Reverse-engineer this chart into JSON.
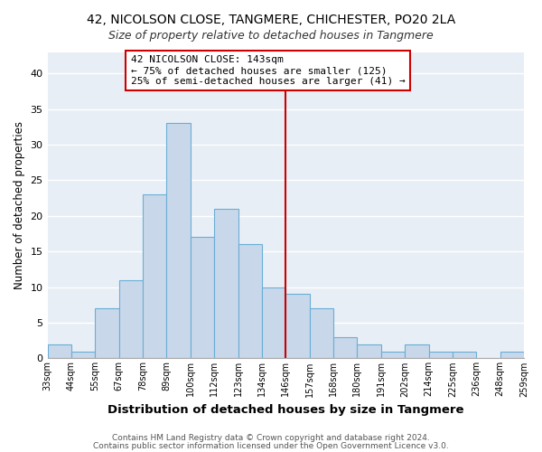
{
  "title1": "42, NICOLSON CLOSE, TANGMERE, CHICHESTER, PO20 2LA",
  "title2": "Size of property relative to detached houses in Tangmere",
  "xlabel": "Distribution of detached houses by size in Tangmere",
  "ylabel": "Number of detached properties",
  "footer1": "Contains HM Land Registry data © Crown copyright and database right 2024.",
  "footer2": "Contains public sector information licensed under the Open Government Licence v3.0.",
  "bin_labels": [
    "33sqm",
    "44sqm",
    "55sqm",
    "67sqm",
    "78sqm",
    "89sqm",
    "100sqm",
    "112sqm",
    "123sqm",
    "134sqm",
    "146sqm",
    "157sqm",
    "168sqm",
    "180sqm",
    "191sqm",
    "202sqm",
    "214sqm",
    "225sqm",
    "236sqm",
    "248sqm",
    "259sqm"
  ],
  "bar_heights": [
    2,
    1,
    7,
    11,
    23,
    33,
    17,
    21,
    16,
    10,
    9,
    7,
    3,
    2,
    1,
    2,
    1,
    1,
    0,
    1
  ],
  "bar_color": "#c8d8ea",
  "bar_edge_color": "#6aaed6",
  "vline_label": "146sqm",
  "vline_color": "#cc0000",
  "annotation_title": "42 NICOLSON CLOSE: 143sqm",
  "annotation_line1": "← 75% of detached houses are smaller (125)",
  "annotation_line2": "25% of semi-detached houses are larger (41) →",
  "annotation_box_edge": "#cc0000",
  "plot_bg_color": "#e8eef5",
  "ylim": [
    0,
    43
  ],
  "yticks": [
    0,
    5,
    10,
    15,
    20,
    25,
    30,
    35,
    40
  ],
  "grid_color": "#ffffff",
  "title1_fontsize": 10,
  "title2_fontsize": 9
}
